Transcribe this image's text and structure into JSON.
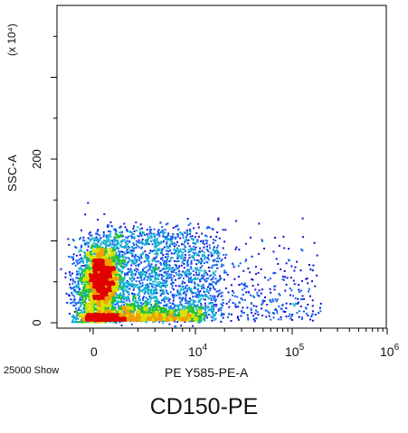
{
  "chart_data": {
    "type": "scatter",
    "title": "CD150-PE",
    "xlabel": "PE Y585-PE-A",
    "ylabel": "SSC-A",
    "y_multiplier_label": "(x 10⁴)",
    "event_count_label": "25000 Show",
    "x_scale": "biexponential",
    "x_ticks": [
      {
        "label": "0",
        "base": "0",
        "exp": ""
      },
      {
        "label": "10^4",
        "base": "10",
        "exp": "4"
      },
      {
        "label": "10^5",
        "base": "10",
        "exp": "5"
      },
      {
        "label": "10^6",
        "base": "10",
        "exp": "6"
      }
    ],
    "y_ticks": [
      "0",
      "200"
    ],
    "ylim": [
      0,
      500
    ],
    "grid": false,
    "colormap": "density (blue → cyan → green → yellow → red)",
    "populations": [
      {
        "description": "bright dense cluster",
        "x_center": 1500,
        "y_center": 50,
        "relative_density": "highest"
      },
      {
        "description": "low-SSC dense core",
        "x_center": 1500,
        "y_center": 5,
        "relative_density": "very high"
      },
      {
        "description": "PE-positive tail",
        "x_range": [
          5000,
          200000
        ],
        "y_range": [
          0,
          130
        ],
        "relative_density": "low"
      }
    ]
  }
}
